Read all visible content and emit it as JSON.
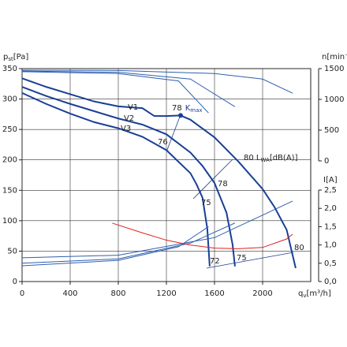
{
  "chart_data": {
    "type": "line",
    "xlabel": {
      "base": "q",
      "sub": "v",
      "unit": "[m³/h]"
    },
    "ylabel": {
      "base": "p",
      "sub": "st",
      "unit": "[Pa]"
    },
    "y2label": "n[min⁻¹]",
    "y3label": "I[A]",
    "xlim": [
      0,
      2400
    ],
    "xticks": [
      0,
      400,
      800,
      1200,
      1600,
      2000
    ],
    "ylim": [
      0,
      350
    ],
    "yticks": [
      0,
      50,
      100,
      150,
      200,
      250,
      300,
      350
    ],
    "y2lim": [
      0,
      1500
    ],
    "y2ticks": [
      0,
      500,
      1000,
      1500
    ],
    "y3lim": [
      0,
      2.5
    ],
    "y3ticks": [
      {
        "value": 0,
        "label": "0,0"
      },
      {
        "value": 0.5,
        "label": "0,5"
      },
      {
        "value": 1,
        "label": "1,0"
      },
      {
        "value": 1.5,
        "label": "1,5"
      },
      {
        "value": 2,
        "label": "2,0"
      },
      {
        "value": 2.5,
        "label": "2,5"
      }
    ],
    "grid": true,
    "series": [
      {
        "name": "V1",
        "color": "#1a3f95",
        "axis": "y",
        "x": [
          0,
          200,
          400,
          600,
          800,
          1000,
          1100,
          1200,
          1318,
          1400,
          1600,
          1800,
          2000,
          2100,
          2200,
          2275
        ],
        "values": [
          334,
          320,
          308,
          296,
          288,
          285,
          272,
          272,
          273,
          266,
          237,
          197,
          152,
          122,
          85,
          22
        ]
      },
      {
        "name": "V2",
        "color": "#1a3f95",
        "axis": "y",
        "x": [
          0,
          200,
          400,
          600,
          800,
          1000,
          1200,
          1400,
          1500,
          1600,
          1700,
          1750,
          1770
        ],
        "values": [
          320,
          305,
          292,
          280,
          268,
          258,
          242,
          212,
          190,
          162,
          113,
          61,
          25
        ]
      },
      {
        "name": "V3",
        "color": "#1a3f95",
        "axis": "y",
        "x": [
          0,
          200,
          400,
          600,
          800,
          1000,
          1200,
          1400,
          1450,
          1500,
          1540,
          1560
        ],
        "values": [
          310,
          292,
          276,
          262,
          252,
          238,
          216,
          178,
          160,
          138,
          87,
          25
        ]
      },
      {
        "color": "#2f5fb0",
        "axis": "y2",
        "x": [
          0,
          800,
          1600,
          2000,
          2250
        ],
        "values": [
          1475,
          1470,
          1420,
          1330,
          1100
        ]
      },
      {
        "color": "#2f5fb0",
        "axis": "y2",
        "x": [
          0,
          800,
          1400,
          1770
        ],
        "values": [
          1460,
          1440,
          1330,
          880
        ]
      },
      {
        "color": "#2f5fb0",
        "axis": "y2",
        "x": [
          0,
          800,
          1300,
          1550
        ],
        "values": [
          1450,
          1420,
          1300,
          780
        ]
      },
      {
        "color": "#2f5fb0",
        "axis": "y3",
        "x": [
          0,
          800,
          1600,
          2250
        ],
        "values": [
          0.65,
          0.72,
          1.2,
          2.2
        ]
      },
      {
        "color": "#2f5fb0",
        "axis": "y3",
        "x": [
          0,
          800,
          1400,
          1770
        ],
        "values": [
          0.5,
          0.62,
          1.05,
          1.6
        ]
      },
      {
        "color": "#2f5fb0",
        "axis": "y3",
        "x": [
          0,
          800,
          1300,
          1550
        ],
        "values": [
          0.43,
          0.58,
          0.95,
          1.5
        ]
      },
      {
        "color": "#e02020",
        "axis": "y",
        "x": [
          750,
          1000,
          1200,
          1400,
          1600,
          1800,
          2000,
          2200,
          2250
        ],
        "values": [
          96,
          80,
          68,
          60,
          55,
          54,
          56,
          70,
          78
        ]
      }
    ],
    "kmax": {
      "x": 1318,
      "y": 273,
      "level": "78",
      "base": "K",
      "sub": "max"
    },
    "sound_label": {
      "base": "80 L",
      "sub": "WA",
      "unit": "[dB(A)]"
    },
    "annotations": [
      "76",
      "78",
      "75",
      "72",
      "75",
      "80"
    ]
  }
}
